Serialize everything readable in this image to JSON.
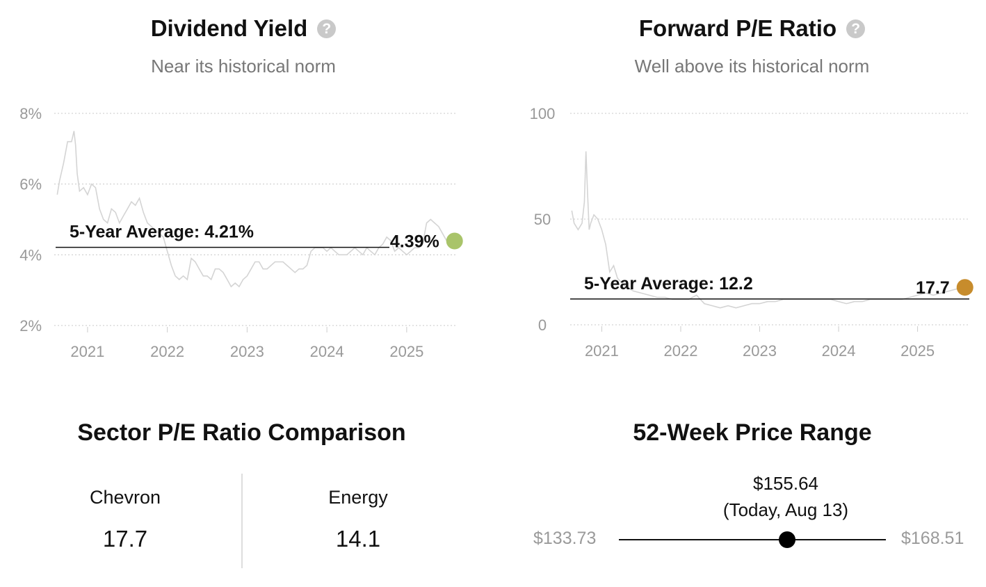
{
  "dividend_yield": {
    "title": "Dividend Yield",
    "help": "?",
    "subtitle": "Near its historical norm",
    "avg_label": "5-Year Average: 4.21%",
    "current_label": "4.39%",
    "marker_color": "#a9c46a"
  },
  "forward_pe": {
    "title": "Forward P/E Ratio",
    "help": "?",
    "subtitle": "Well above its historical norm",
    "avg_label": "5-Year Average: 12.2",
    "current_label": "17.7",
    "marker_color": "#c78c2c"
  },
  "sector": {
    "title": "Sector P/E Ratio Comparison",
    "items": [
      {
        "label": "Chevron",
        "value": "17.7"
      },
      {
        "label": "Energy",
        "value": "14.1"
      }
    ]
  },
  "range_52w": {
    "title": "52-Week Price Range",
    "low": "$133.73",
    "high": "$168.51",
    "current": "$155.64",
    "current_note": "(Today, Aug 13)",
    "position_fraction": 0.63
  },
  "chart_data": [
    {
      "type": "line",
      "title": "Dividend Yield",
      "ylabel": "",
      "xlabel": "",
      "ylim": [
        2,
        8
      ],
      "yticks": [
        "2%",
        "4%",
        "6%",
        "8%"
      ],
      "xticks": [
        "2021",
        "2022",
        "2023",
        "2024",
        "2025"
      ],
      "xlim": [
        2020.6,
        2025.62
      ],
      "average": 4.21,
      "current": 4.39,
      "series": [
        {
          "x": [
            2020.62,
            2020.65,
            2020.7,
            2020.75,
            2020.8,
            2020.83,
            2020.85,
            2020.87,
            2020.9,
            2020.95,
            2021.0,
            2021.05,
            2021.1,
            2021.15,
            2021.2,
            2021.25,
            2021.3,
            2021.35,
            2021.4,
            2021.45,
            2021.5,
            2021.55,
            2021.6,
            2021.65,
            2021.7,
            2021.75,
            2021.8,
            2021.85,
            2021.9,
            2021.95,
            2022.0,
            2022.05,
            2022.1,
            2022.15,
            2022.2,
            2022.25,
            2022.3,
            2022.35,
            2022.4,
            2022.45,
            2022.5,
            2022.55,
            2022.6,
            2022.65,
            2022.7,
            2022.75,
            2022.8,
            2022.85,
            2022.9,
            2022.95,
            2023.0,
            2023.05,
            2023.1,
            2023.15,
            2023.2,
            2023.25,
            2023.3,
            2023.35,
            2023.4,
            2023.45,
            2023.5,
            2023.55,
            2023.6,
            2023.65,
            2023.7,
            2023.75,
            2023.8,
            2023.85,
            2023.9,
            2023.95,
            2024.0,
            2024.05,
            2024.1,
            2024.15,
            2024.2,
            2024.25,
            2024.3,
            2024.35,
            2024.4,
            2024.45,
            2024.5,
            2024.55,
            2024.6,
            2024.65,
            2024.7,
            2024.75,
            2024.8,
            2024.85,
            2024.9,
            2024.95,
            2025.0,
            2025.05,
            2025.1,
            2025.15,
            2025.2,
            2025.25,
            2025.3,
            2025.35,
            2025.4,
            2025.45,
            2025.5,
            2025.55,
            2025.6
          ],
          "values": [
            5.7,
            6.1,
            6.6,
            7.2,
            7.2,
            7.5,
            7.1,
            6.3,
            5.8,
            5.9,
            5.7,
            6.0,
            5.9,
            5.3,
            5.0,
            4.9,
            5.3,
            5.2,
            4.9,
            5.1,
            5.3,
            5.5,
            5.4,
            5.6,
            5.2,
            4.9,
            4.8,
            4.7,
            4.6,
            4.5,
            4.1,
            3.7,
            3.4,
            3.3,
            3.4,
            3.3,
            3.9,
            3.8,
            3.6,
            3.4,
            3.4,
            3.3,
            3.6,
            3.6,
            3.5,
            3.3,
            3.1,
            3.2,
            3.1,
            3.3,
            3.4,
            3.6,
            3.8,
            3.8,
            3.6,
            3.6,
            3.7,
            3.8,
            3.8,
            3.8,
            3.7,
            3.6,
            3.5,
            3.6,
            3.6,
            3.7,
            4.1,
            4.2,
            4.2,
            4.2,
            4.1,
            4.2,
            4.1,
            4.0,
            4.0,
            4.0,
            4.1,
            4.2,
            4.1,
            4.0,
            4.2,
            4.1,
            4.0,
            4.2,
            4.3,
            4.5,
            4.4,
            4.1,
            4.2,
            4.1,
            4.0,
            4.1,
            4.2,
            4.2,
            4.3,
            4.9,
            5.0,
            4.9,
            4.8,
            4.6,
            4.4,
            4.3,
            4.39
          ]
        }
      ]
    },
    {
      "type": "line",
      "title": "Forward P/E Ratio",
      "ylabel": "",
      "xlabel": "",
      "ylim": [
        0,
        100
      ],
      "yticks": [
        "0",
        "50",
        "100"
      ],
      "xticks": [
        "2021",
        "2022",
        "2023",
        "2024",
        "2025"
      ],
      "xlim": [
        2020.6,
        2025.62
      ],
      "average": 12.2,
      "current": 17.7,
      "series": [
        {
          "x": [
            2020.62,
            2020.65,
            2020.7,
            2020.75,
            2020.78,
            2020.8,
            2020.82,
            2020.84,
            2020.86,
            2020.9,
            2020.95,
            2021.0,
            2021.05,
            2021.1,
            2021.15,
            2021.2,
            2021.25,
            2021.3,
            2021.35,
            2021.4,
            2021.5,
            2021.6,
            2021.7,
            2021.8,
            2021.9,
            2022.0,
            2022.1,
            2022.2,
            2022.3,
            2022.4,
            2022.5,
            2022.6,
            2022.7,
            2022.8,
            2022.9,
            2023.0,
            2023.1,
            2023.2,
            2023.3,
            2023.4,
            2023.5,
            2023.6,
            2023.7,
            2023.8,
            2023.9,
            2024.0,
            2024.1,
            2024.2,
            2024.3,
            2024.4,
            2024.5,
            2024.6,
            2024.7,
            2024.8,
            2024.9,
            2025.0,
            2025.1,
            2025.2,
            2025.3,
            2025.4,
            2025.5,
            2025.6
          ],
          "values": [
            54,
            48,
            45,
            48,
            58,
            82,
            62,
            45,
            48,
            52,
            50,
            45,
            38,
            25,
            28,
            22,
            20,
            18,
            17,
            16,
            15,
            14,
            13,
            13,
            12,
            12,
            12,
            14,
            10,
            9,
            8,
            9,
            8,
            9,
            10,
            10,
            11,
            11,
            12,
            12,
            12,
            12,
            12,
            12,
            12,
            11,
            10,
            11,
            11,
            12,
            12,
            12,
            12,
            12,
            13,
            14,
            15,
            14,
            15,
            16,
            17,
            17.7
          ]
        }
      ]
    }
  ]
}
